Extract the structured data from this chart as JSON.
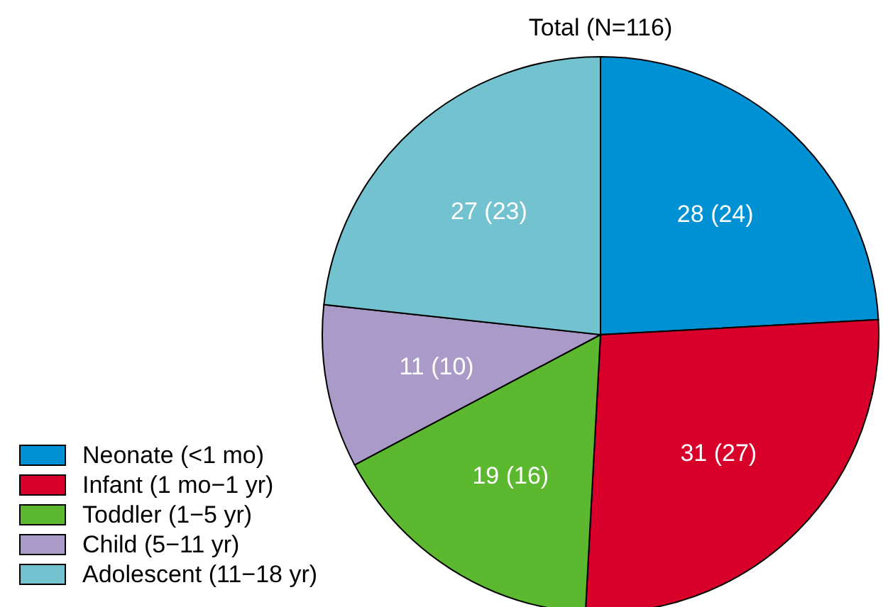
{
  "chart_data": {
    "type": "pie",
    "title": "Total (N=116)",
    "categories": [
      "Neonate (<1 mo)",
      "Infant (1 mo−1 yr)",
      "Toddler (1−5 yr)",
      "Child (5−11 yr)",
      "Adolescent (11−18 yr)"
    ],
    "values": [
      28,
      31,
      19,
      11,
      27
    ],
    "value_labels": [
      "28 (24)",
      "31 (27)",
      "19 (16)",
      "11 (10)",
      "27 (23)"
    ],
    "colors": [
      "#0090d4",
      "#d8002a",
      "#5cb82e",
      "#a99ac8",
      "#72c2d0"
    ],
    "legend": "bottom left"
  }
}
